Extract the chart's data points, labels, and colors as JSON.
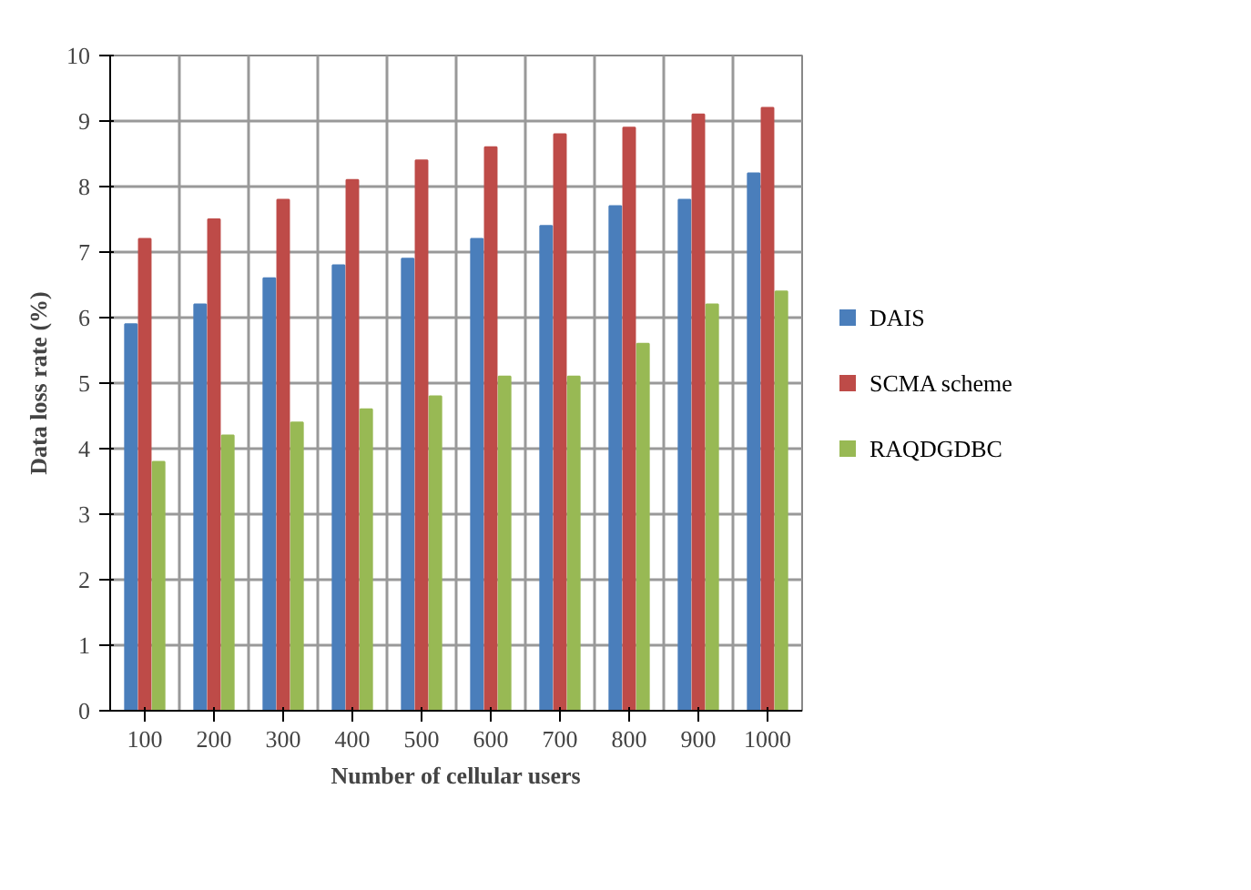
{
  "chart_data": {
    "type": "bar",
    "xlabel": "Number of cellular users",
    "ylabel": "Data loss rate (%)",
    "categories": [
      "100",
      "200",
      "300",
      "400",
      "500",
      "600",
      "700",
      "800",
      "900",
      "1000"
    ],
    "series": [
      {
        "name": "DAIS",
        "color": "#4a7ebb",
        "values": [
          5.9,
          6.2,
          6.6,
          6.8,
          6.9,
          7.2,
          7.4,
          7.7,
          7.8,
          8.2
        ]
      },
      {
        "name": "SCMA scheme",
        "color": "#be4b48",
        "values": [
          7.2,
          7.5,
          7.8,
          8.1,
          8.4,
          8.6,
          8.8,
          8.9,
          9.1,
          9.2
        ]
      },
      {
        "name": "RAQDGDBC",
        "color": "#98b954",
        "values": [
          3.8,
          4.2,
          4.4,
          4.6,
          4.8,
          5.1,
          5.1,
          5.6,
          6.2,
          6.4
        ]
      }
    ],
    "ylim": [
      0,
      10
    ],
    "yticks": [
      0,
      1,
      2,
      3,
      4,
      5,
      6,
      7,
      8,
      9,
      10
    ],
    "grid": true,
    "legend": "right"
  }
}
